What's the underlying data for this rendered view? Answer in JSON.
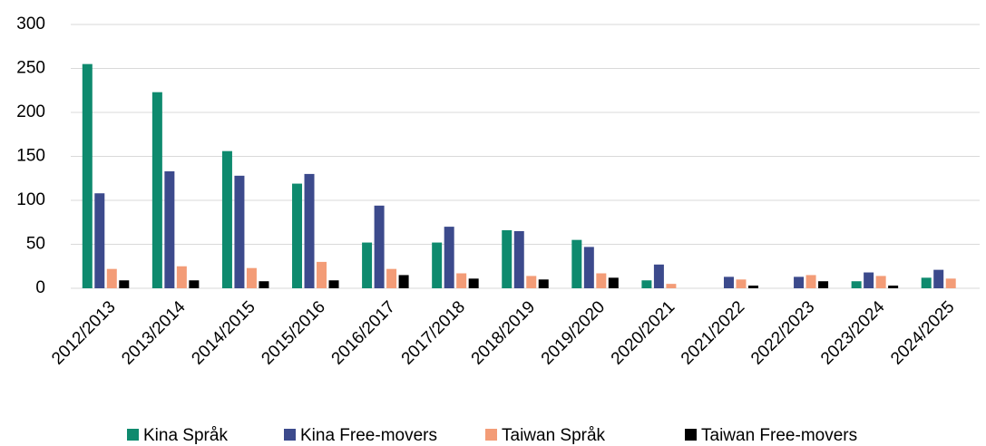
{
  "chart_data": {
    "type": "bar",
    "categories": [
      "2012/2013",
      "2013/2014",
      "2014/2015",
      "2015/2016",
      "2016/2017",
      "2017/2018",
      "2018/2019",
      "2019/2020",
      "2020/2021",
      "2021/2022",
      "2022/2023",
      "2023/2024",
      "2024/2025"
    ],
    "series": [
      {
        "name": "Kina Språk",
        "color": "#0e8a6e",
        "values": [
          255,
          223,
          156,
          119,
          52,
          52,
          66,
          55,
          9,
          0,
          0,
          8,
          12
        ]
      },
      {
        "name": "Kina Free-movers",
        "color": "#3c4a8c",
        "values": [
          108,
          133,
          128,
          130,
          94,
          70,
          65,
          47,
          27,
          13,
          13,
          18,
          21
        ]
      },
      {
        "name": "Taiwan Språk",
        "color": "#f39c77",
        "values": [
          22,
          25,
          23,
          30,
          22,
          17,
          14,
          17,
          5,
          10,
          15,
          14,
          11
        ]
      },
      {
        "name": "Taiwan Free-movers",
        "color": "#000000",
        "values": [
          9,
          9,
          8,
          9,
          15,
          11,
          10,
          12,
          0,
          3,
          8,
          3,
          0
        ]
      }
    ],
    "ylim": [
      0,
      300
    ],
    "yticks": [
      0,
      50,
      100,
      150,
      200,
      250,
      300
    ],
    "grid": true,
    "legend": "bottom"
  }
}
